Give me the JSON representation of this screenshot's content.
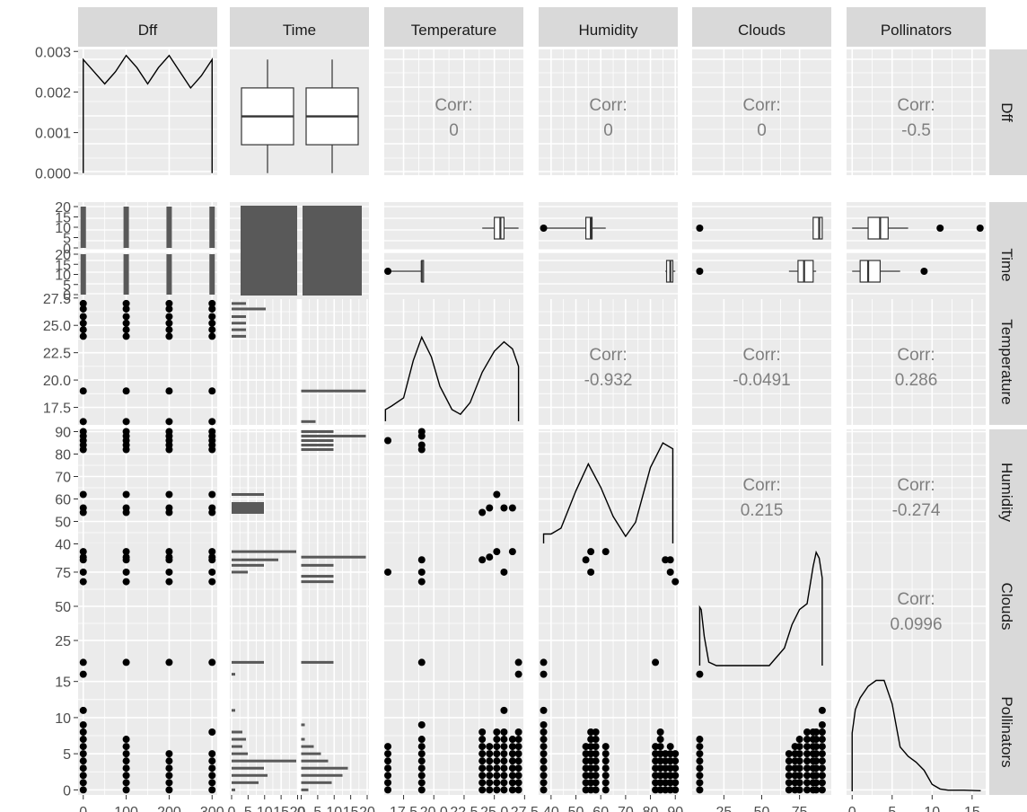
{
  "chart_data": {
    "type": "scatter-matrix",
    "variables": [
      "Dff",
      "Time",
      "Temperature",
      "Humidity",
      "Clouds",
      "Pollinators"
    ],
    "axes": {
      "Dff": {
        "range": [
          -12,
          312
        ],
        "ticks": [
          0,
          100,
          200,
          300
        ],
        "tick_labels": [
          "0",
          "100",
          "200",
          "300"
        ]
      },
      "Temperature": {
        "range": [
          15.9,
          27.4
        ],
        "ticks": [
          17.5,
          20,
          22.5,
          25,
          27.5
        ],
        "tick_labels": [
          "17.5",
          "20.0",
          "22.5",
          "25.0",
          "27.5"
        ]
      },
      "Humidity": {
        "range": [
          35,
          91
        ],
        "ticks": [
          40,
          50,
          60,
          70,
          80,
          90
        ],
        "tick_labels": [
          "40",
          "50",
          "60",
          "70",
          "80",
          "90"
        ]
      },
      "Clouds": {
        "range": [
          4,
          96
        ],
        "ticks": [
          25,
          50,
          75
        ],
        "tick_labels": [
          "25",
          "50",
          "75"
        ]
      },
      "Pollinators": {
        "range": [
          -0.7,
          16.7
        ],
        "ticks": [
          0,
          5,
          10,
          15
        ],
        "tick_labels": [
          "0",
          "5",
          "10",
          "15"
        ]
      },
      "Time_x": {
        "ticks": [
          0,
          5,
          10,
          15,
          20
        ],
        "tick_labels": [
          "0",
          "5",
          "10",
          "15",
          "20"
        ]
      },
      "Dff_density": {
        "range": [
          -5e-05,
          0.00305
        ],
        "ticks": [
          0,
          0.001,
          0.002,
          0.003
        ],
        "tick_labels": [
          "0.000",
          "0.001",
          "0.002",
          "0.003"
        ]
      },
      "Time_count": {
        "ticks": [
          0,
          5,
          10,
          15,
          20
        ],
        "tick_labels": [
          "0",
          "5",
          "10",
          "15",
          "20"
        ]
      }
    },
    "correlations": [
      {
        "row": "Dff",
        "col": "Temperature",
        "label": "Corr:",
        "value": "0"
      },
      {
        "row": "Dff",
        "col": "Humidity",
        "label": "Corr:",
        "value": "0"
      },
      {
        "row": "Dff",
        "col": "Clouds",
        "label": "Corr:",
        "value": "0"
      },
      {
        "row": "Dff",
        "col": "Pollinators",
        "label": "Corr:",
        "value": "-0.5"
      },
      {
        "row": "Temperature",
        "col": "Humidity",
        "label": "Corr:",
        "value": "-0.932"
      },
      {
        "row": "Temperature",
        "col": "Clouds",
        "label": "Corr:",
        "value": "-0.0491"
      },
      {
        "row": "Temperature",
        "col": "Pollinators",
        "label": "Corr:",
        "value": "0.286"
      },
      {
        "row": "Humidity",
        "col": "Clouds",
        "label": "Corr:",
        "value": "0.215"
      },
      {
        "row": "Humidity",
        "col": "Pollinators",
        "label": "Corr:",
        "value": "-0.274"
      },
      {
        "row": "Clouds",
        "col": "Pollinators",
        "label": "Corr:",
        "value": "0.0996"
      }
    ],
    "dff_levels": [
      0,
      100,
      200,
      300
    ],
    "temperature_levels": [
      16.2,
      19.0,
      24.0,
      24.6,
      25.2,
      25.8,
      26.5,
      27.0
    ],
    "humidity_levels": [
      37,
      54,
      56,
      62,
      82,
      84,
      86,
      88,
      90
    ],
    "clouds_levels": [
      9,
      68,
      75,
      84,
      86,
      90
    ],
    "pollinator_levels": [
      0,
      1,
      2,
      3,
      4,
      5,
      6,
      7,
      8,
      9,
      11,
      16
    ],
    "environment_points": [
      {
        "temperature": 16.2,
        "humidity": 86,
        "clouds": 75,
        "pollinators": 0
      },
      {
        "temperature": 19.0,
        "humidity": 82,
        "clouds": 68,
        "pollinators": 1
      },
      {
        "temperature": 19.0,
        "humidity": 84,
        "clouds": 75,
        "pollinators": 3
      },
      {
        "temperature": 19.0,
        "humidity": 88,
        "clouds": 9,
        "pollinators": 5
      },
      {
        "temperature": 19.0,
        "humidity": 90,
        "clouds": 84,
        "pollinators": 9
      },
      {
        "temperature": 24.0,
        "humidity": 54,
        "clouds": 84,
        "pollinators": 2
      },
      {
        "temperature": 24.6,
        "humidity": 56,
        "clouds": 86,
        "pollinators": 4
      },
      {
        "temperature": 25.2,
        "humidity": 62,
        "clouds": 90,
        "pollinators": 6
      },
      {
        "temperature": 25.8,
        "humidity": 56,
        "clouds": 75,
        "pollinators": 8
      },
      {
        "temperature": 26.5,
        "humidity": 56,
        "clouds": 90,
        "pollinators": 11
      },
      {
        "temperature": 27.0,
        "humidity": 37,
        "clouds": 9,
        "pollinators": 16
      }
    ],
    "clouds_humidity_points": [
      {
        "humidity": 37,
        "clouds": 9
      },
      {
        "humidity": 54,
        "clouds": 84
      },
      {
        "humidity": 56,
        "clouds": 90
      },
      {
        "humidity": 56,
        "clouds": 75
      },
      {
        "humidity": 62,
        "clouds": 90
      },
      {
        "humidity": 82,
        "clouds": 9
      },
      {
        "humidity": 86,
        "clouds": 84
      },
      {
        "humidity": 88,
        "clouds": 84
      },
      {
        "humidity": 90,
        "clouds": 68
      },
      {
        "humidity": 88,
        "clouds": 75
      }
    ],
    "pollinators_by_humidity": [
      {
        "humidity": 37,
        "values": [
          0,
          1,
          2,
          3,
          4,
          5,
          6,
          7,
          8,
          9,
          11,
          16
        ]
      },
      {
        "humidity": 54,
        "values": [
          0,
          1,
          2,
          3,
          4,
          5,
          6
        ]
      },
      {
        "humidity": 56,
        "values": [
          0,
          1,
          2,
          3,
          4,
          5,
          6,
          7,
          8
        ]
      },
      {
        "humidity": 58,
        "values": [
          0,
          1,
          2,
          3,
          4,
          5,
          6,
          7,
          8
        ]
      },
      {
        "humidity": 62,
        "values": [
          0,
          1,
          2,
          3,
          4,
          5,
          6
        ]
      },
      {
        "humidity": 82,
        "values": [
          0,
          1,
          2,
          3,
          4,
          5,
          6
        ]
      },
      {
        "humidity": 84,
        "values": [
          0,
          1,
          2,
          3,
          4,
          5,
          6,
          7,
          8
        ]
      },
      {
        "humidity": 86,
        "values": [
          0,
          1,
          2,
          3,
          4,
          5
        ]
      },
      {
        "humidity": 88,
        "values": [
          0,
          1,
          2,
          3,
          4,
          5,
          6
        ]
      },
      {
        "humidity": 90,
        "values": [
          0,
          1,
          2,
          3,
          4,
          5
        ]
      }
    ],
    "pollinators_by_clouds": [
      {
        "clouds": 9,
        "values": [
          0,
          1,
          2,
          3,
          4,
          5,
          6,
          7,
          16
        ]
      },
      {
        "clouds": 68,
        "values": [
          0,
          1,
          2,
          3,
          4,
          5
        ]
      },
      {
        "clouds": 72,
        "values": [
          0,
          1,
          2,
          3,
          4,
          5,
          6
        ]
      },
      {
        "clouds": 75,
        "values": [
          0,
          1,
          2,
          3,
          4,
          5,
          6,
          7
        ]
      },
      {
        "clouds": 80,
        "values": [
          0,
          1,
          2,
          3,
          4,
          5,
          6,
          7,
          8
        ]
      },
      {
        "clouds": 84,
        "values": [
          0,
          1,
          2,
          3,
          4,
          5,
          6,
          7,
          8
        ]
      },
      {
        "clouds": 86,
        "values": [
          0,
          1,
          2,
          3,
          4,
          5,
          6,
          7,
          8
        ]
      },
      {
        "clouds": 90,
        "values": [
          0,
          1,
          2,
          3,
          4,
          5,
          6,
          7,
          8,
          9,
          11
        ]
      }
    ],
    "pollinators_by_dff": [
      {
        "dff": 0,
        "values": [
          0,
          1,
          2,
          3,
          4,
          5,
          6,
          7,
          8,
          9,
          11,
          16
        ]
      },
      {
        "dff": 100,
        "values": [
          0,
          1,
          2,
          3,
          4,
          5,
          6,
          7
        ]
      },
      {
        "dff": 200,
        "values": [
          0,
          1,
          2,
          3,
          4,
          5
        ]
      },
      {
        "dff": 300,
        "values": [
          0,
          1,
          2,
          3,
          4,
          5,
          8
        ]
      }
    ],
    "pollinators_by_temperature": [
      {
        "temperature": 16.2,
        "values": [
          0,
          1,
          2,
          3,
          4,
          5,
          6
        ]
      },
      {
        "temperature": 19.0,
        "values": [
          0,
          1,
          2,
          3,
          4,
          5,
          6,
          7,
          9
        ]
      },
      {
        "temperature": 24.0,
        "values": [
          0,
          1,
          2,
          3,
          4,
          5,
          6,
          7,
          8
        ]
      },
      {
        "temperature": 24.6,
        "values": [
          0,
          1,
          2,
          3,
          4,
          5,
          6
        ]
      },
      {
        "temperature": 25.2,
        "values": [
          0,
          1,
          2,
          3,
          4,
          5,
          6,
          7,
          8
        ]
      },
      {
        "temperature": 25.8,
        "values": [
          0,
          1,
          2,
          3,
          4,
          5,
          6,
          7,
          8,
          11
        ]
      },
      {
        "temperature": 26.5,
        "values": [
          0,
          1,
          2,
          3,
          4,
          5,
          6,
          7
        ]
      },
      {
        "temperature": 27.0,
        "values": [
          0,
          1,
          2,
          3,
          4,
          5,
          6,
          7,
          8,
          16
        ]
      }
    ],
    "dff_density_curve": [
      [
        0,
        0.0028
      ],
      [
        25,
        0.0025
      ],
      [
        50,
        0.0022
      ],
      [
        75,
        0.0025
      ],
      [
        100,
        0.0029
      ],
      [
        125,
        0.0026
      ],
      [
        150,
        0.0022
      ],
      [
        175,
        0.0026
      ],
      [
        200,
        0.0029
      ],
      [
        225,
        0.0025
      ],
      [
        250,
        0.0021
      ],
      [
        275,
        0.0024
      ],
      [
        300,
        0.0028
      ]
    ],
    "temperature_density_curve": [
      [
        16.0,
        0.1
      ],
      [
        16.5,
        0.13
      ],
      [
        17.5,
        0.2
      ],
      [
        18.3,
        0.52
      ],
      [
        19.0,
        0.72
      ],
      [
        19.8,
        0.55
      ],
      [
        20.5,
        0.3
      ],
      [
        21.5,
        0.1
      ],
      [
        22.2,
        0.06
      ],
      [
        23.0,
        0.16
      ],
      [
        24.0,
        0.42
      ],
      [
        25.0,
        0.6
      ],
      [
        25.8,
        0.68
      ],
      [
        26.5,
        0.62
      ],
      [
        27.0,
        0.47
      ]
    ],
    "humidity_density_curve": [
      [
        37,
        0.15
      ],
      [
        40,
        0.15
      ],
      [
        44,
        0.2
      ],
      [
        50,
        0.52
      ],
      [
        55,
        0.75
      ],
      [
        60,
        0.55
      ],
      [
        65,
        0.3
      ],
      [
        70,
        0.13
      ],
      [
        74,
        0.25
      ],
      [
        80,
        0.72
      ],
      [
        85,
        0.93
      ],
      [
        89,
        0.88
      ]
    ],
    "clouds_density_curve": [
      [
        9,
        0.5
      ],
      [
        10,
        0.48
      ],
      [
        12,
        0.25
      ],
      [
        15,
        0.03
      ],
      [
        20,
        0.0
      ],
      [
        40,
        0.0
      ],
      [
        55,
        0.0
      ],
      [
        65,
        0.15
      ],
      [
        70,
        0.35
      ],
      [
        75,
        0.48
      ],
      [
        80,
        0.53
      ],
      [
        84,
        0.85
      ],
      [
        86,
        0.97
      ],
      [
        88,
        0.92
      ],
      [
        90,
        0.75
      ]
    ],
    "pollinators_density_curve": [
      [
        0,
        0.5
      ],
      [
        0.4,
        0.7
      ],
      [
        1,
        0.8
      ],
      [
        2,
        0.9
      ],
      [
        3,
        0.95
      ],
      [
        4,
        0.95
      ],
      [
        5,
        0.75
      ],
      [
        6,
        0.38
      ],
      [
        7,
        0.3
      ],
      [
        8,
        0.25
      ],
      [
        9,
        0.18
      ],
      [
        10,
        0.06
      ],
      [
        11,
        0.02
      ],
      [
        12,
        0.01
      ],
      [
        14,
        0.01
      ],
      [
        16,
        0.005
      ]
    ],
    "dff_time_boxplot": {
      "groups": [
        {
          "q1": 75,
          "median": 150,
          "q3": 225,
          "min": 0,
          "max": 300
        },
        {
          "q1": 75,
          "median": 150,
          "q3": 225,
          "min": 0,
          "max": 300
        }
      ]
    },
    "time_temperature_boxes": [
      {
        "level": "top",
        "min": 24.0,
        "q1": 25.0,
        "median": 25.5,
        "q3": 25.8,
        "max": 27.0
      },
      {
        "level": "bottom",
        "min": 16.2,
        "q1": 19.0,
        "median": 19.0,
        "q3": 19.0,
        "max": 19.0,
        "outliers": [
          16.2
        ]
      }
    ],
    "time_humidity_boxes": [
      {
        "level": "top",
        "min": 37,
        "q1": 54,
        "median": 56,
        "q3": 56.5,
        "max": 62,
        "outliers": [
          37
        ]
      },
      {
        "level": "bottom",
        "min": 86,
        "q1": 86.5,
        "median": 88,
        "q3": 89,
        "max": 90
      }
    ],
    "time_clouds_boxes": [
      {
        "level": "top",
        "min": 84,
        "q1": 84,
        "median": 88,
        "q3": 90,
        "max": 90,
        "outliers": [
          9
        ]
      },
      {
        "level": "bottom",
        "min": 68,
        "q1": 74,
        "median": 78,
        "q3": 84,
        "max": 86,
        "outliers": [
          9
        ]
      }
    ],
    "time_pollinators_boxes": [
      {
        "level": "top",
        "min": 0,
        "q1": 2,
        "median": 3.5,
        "q3": 4.5,
        "max": 7,
        "outliers": [
          11,
          16
        ]
      },
      {
        "level": "bottom",
        "min": 0,
        "q1": 1,
        "median": 2,
        "q3": 3.5,
        "max": 6,
        "outliers": [
          9
        ]
      }
    ]
  }
}
